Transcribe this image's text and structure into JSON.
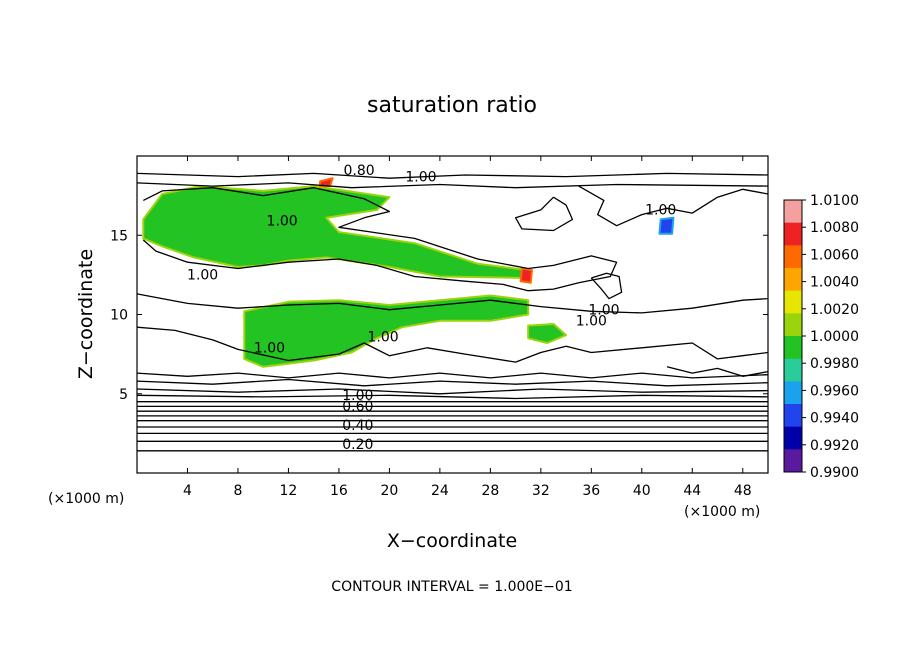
{
  "chart_data": {
    "type": "heatmap",
    "title": "saturation ratio",
    "xlabel": "X−coordinate",
    "ylabel": "Z−coordinate",
    "x_unit_left": "(×1000 m)",
    "x_unit_right": "(×1000 m)",
    "xlim": [
      0,
      50
    ],
    "ylim": [
      0,
      20
    ],
    "x_ticks": [
      "4",
      "8",
      "12",
      "16",
      "20",
      "24",
      "28",
      "32",
      "36",
      "40",
      "44",
      "48"
    ],
    "y_ticks": [
      "5",
      "10",
      "15"
    ],
    "footer": "CONTOUR INTERVAL = 1.000E−01",
    "colorbar": {
      "labels": [
        "1.0100",
        "1.0080",
        "1.0060",
        "1.0040",
        "1.0020",
        "1.0000",
        "0.9980",
        "0.9960",
        "0.9940",
        "0.9920",
        "0.9900"
      ],
      "colors": [
        "#f4a0a0",
        "#ee2222",
        "#ff6a00",
        "#ffa500",
        "#e6e600",
        "#9ad40a",
        "#22c322",
        "#2acc9a",
        "#1aa2ee",
        "#2244ee",
        "#0000aa",
        "#5a1aa0"
      ]
    },
    "contour_labels": [
      {
        "text": "0.80",
        "x": 17.6,
        "y": 18.8
      },
      {
        "text": "1.00",
        "x": 22.5,
        "y": 18.4
      },
      {
        "text": "1.00",
        "x": 41.5,
        "y": 16.3
      },
      {
        "text": "1.00",
        "x": 11.5,
        "y": 15.6
      },
      {
        "text": "1.00",
        "x": 5.2,
        "y": 12.2
      },
      {
        "text": "1.00",
        "x": 37.0,
        "y": 10.0
      },
      {
        "text": "1.00",
        "x": 36.0,
        "y": 9.3
      },
      {
        "text": "1.00",
        "x": 19.5,
        "y": 8.3
      },
      {
        "text": "1.00",
        "x": 10.5,
        "y": 7.6
      },
      {
        "text": "1.00",
        "x": 17.5,
        "y": 4.6
      },
      {
        "text": "0.60",
        "x": 17.5,
        "y": 3.9
      },
      {
        "text": "0.40",
        "x": 17.5,
        "y": 2.7
      },
      {
        "text": "0.20",
        "x": 17.5,
        "y": 1.5
      }
    ],
    "regions": [
      {
        "level": "green",
        "pts": [
          [
            2,
            17.6
          ],
          [
            5,
            18.1
          ],
          [
            10,
            17.8
          ],
          [
            14,
            18.1
          ],
          [
            20,
            17.4
          ],
          [
            19,
            16.6
          ],
          [
            15,
            16.1
          ],
          [
            16,
            15.2
          ],
          [
            22,
            14.5
          ],
          [
            27,
            13.2
          ],
          [
            31,
            12.8
          ],
          [
            31,
            12.3
          ],
          [
            24,
            12.4
          ],
          [
            20,
            13.0
          ],
          [
            15,
            13.6
          ],
          [
            12,
            13.4
          ],
          [
            10,
            13.1
          ],
          [
            8,
            13.0
          ],
          [
            4.5,
            13.6
          ],
          [
            2,
            14.3
          ],
          [
            0.5,
            14.8
          ],
          [
            0.5,
            16.0
          ]
        ]
      },
      {
        "level": "green",
        "pts": [
          [
            8.5,
            10.2
          ],
          [
            12,
            10.8
          ],
          [
            16,
            10.9
          ],
          [
            20,
            10.6
          ],
          [
            24,
            10.9
          ],
          [
            28,
            11.2
          ],
          [
            31,
            10.9
          ],
          [
            31,
            10.0
          ],
          [
            28,
            9.6
          ],
          [
            24,
            9.6
          ],
          [
            21,
            9.2
          ],
          [
            19,
            8.5
          ],
          [
            17,
            7.6
          ],
          [
            14,
            7.1
          ],
          [
            10,
            6.7
          ],
          [
            8.5,
            7.2
          ],
          [
            8.5,
            8.6
          ]
        ]
      },
      {
        "level": "green",
        "pts": [
          [
            31,
            9.3
          ],
          [
            33,
            9.4
          ],
          [
            34,
            8.7
          ],
          [
            32.5,
            8.2
          ],
          [
            31,
            8.5
          ]
        ]
      },
      {
        "level": "red",
        "pts": [
          [
            14.5,
            18.4
          ],
          [
            15.5,
            18.6
          ],
          [
            15.3,
            18.1
          ],
          [
            14.5,
            18.1
          ]
        ]
      },
      {
        "level": "red",
        "pts": [
          [
            30.5,
            12.9
          ],
          [
            31.3,
            12.8
          ],
          [
            31.2,
            12.0
          ],
          [
            30.4,
            12.1
          ]
        ]
      },
      {
        "level": "blue",
        "pts": [
          [
            41.5,
            16.0
          ],
          [
            42.5,
            16.1
          ],
          [
            42.4,
            15.1
          ],
          [
            41.4,
            15.1
          ]
        ]
      }
    ],
    "contours": [
      [
        [
          0,
          18.9
        ],
        [
          8,
          18.7
        ],
        [
          14,
          18.9
        ],
        [
          20,
          18.6
        ],
        [
          26,
          18.8
        ],
        [
          34,
          18.7
        ],
        [
          42,
          18.9
        ],
        [
          50,
          18.8
        ]
      ],
      [
        [
          0,
          18.3
        ],
        [
          6,
          18.1
        ],
        [
          12,
          18.3
        ],
        [
          17,
          18.0
        ],
        [
          24,
          18.2
        ],
        [
          30,
          18.0
        ],
        [
          38,
          18.2
        ],
        [
          50,
          18.1
        ]
      ],
      [
        [
          0.5,
          17.2
        ],
        [
          2,
          17.8
        ],
        [
          6,
          18.0
        ],
        [
          10,
          17.5
        ],
        [
          14,
          18.0
        ],
        [
          18,
          17.3
        ],
        [
          20,
          16.5
        ],
        [
          18,
          16.1
        ],
        [
          16,
          15.5
        ],
        [
          22,
          14.8
        ],
        [
          27,
          13.5
        ],
        [
          31,
          12.9
        ],
        [
          33,
          13.1
        ],
        [
          36,
          13.7
        ],
        [
          38,
          13.3
        ],
        [
          37.5,
          12.4
        ],
        [
          35,
          12.0
        ],
        [
          33,
          11.6
        ],
        [
          31,
          11.5
        ],
        [
          29,
          11.9
        ],
        [
          26,
          12.1
        ],
        [
          22,
          12.4
        ],
        [
          19,
          13.1
        ],
        [
          16,
          13.5
        ],
        [
          12,
          13.3
        ],
        [
          8,
          12.9
        ],
        [
          4,
          13.3
        ],
        [
          1.5,
          14.0
        ],
        [
          0.5,
          14.7
        ]
      ],
      [
        [
          0,
          11.3
        ],
        [
          2,
          11.0
        ],
        [
          4,
          10.7
        ],
        [
          8,
          10.4
        ],
        [
          12,
          10.6
        ],
        [
          16,
          10.7
        ],
        [
          20,
          10.3
        ],
        [
          24,
          10.6
        ],
        [
          28,
          10.9
        ],
        [
          32,
          10.5
        ],
        [
          36,
          10.2
        ],
        [
          40,
          10.1
        ],
        [
          44,
          10.4
        ],
        [
          48,
          10.9
        ],
        [
          50,
          11.0
        ]
      ],
      [
        [
          0,
          9.2
        ],
        [
          3,
          9.0
        ],
        [
          6,
          8.4
        ],
        [
          8,
          7.8
        ],
        [
          12,
          7.1
        ],
        [
          16,
          7.5
        ],
        [
          18,
          8.2
        ],
        [
          20,
          7.4
        ],
        [
          23,
          7.9
        ],
        [
          26,
          7.5
        ],
        [
          30,
          7.0
        ],
        [
          32,
          7.6
        ],
        [
          34,
          8.0
        ],
        [
          36,
          7.6
        ],
        [
          40,
          7.9
        ],
        [
          44,
          8.2
        ],
        [
          46,
          7.2
        ],
        [
          48,
          7.4
        ],
        [
          50,
          7.6
        ]
      ],
      [
        [
          35,
          18.1
        ],
        [
          37,
          17.2
        ],
        [
          36.5,
          16.3
        ],
        [
          38,
          15.6
        ],
        [
          40,
          16.3
        ],
        [
          42,
          16.7
        ],
        [
          44,
          16.4
        ],
        [
          46,
          17.4
        ],
        [
          48,
          17.9
        ],
        [
          50,
          17.6
        ]
      ],
      [
        [
          33,
          17.4
        ],
        [
          32,
          16.6
        ],
        [
          30,
          16.1
        ],
        [
          30.5,
          15.4
        ],
        [
          33,
          15.3
        ],
        [
          34.5,
          16.0
        ],
        [
          34,
          16.9
        ],
        [
          33,
          17.4
        ]
      ],
      [
        [
          36,
          12.3
        ],
        [
          36.8,
          11.6
        ],
        [
          37.4,
          11.0
        ],
        [
          38.4,
          11.4
        ],
        [
          38.2,
          12.4
        ],
        [
          37.2,
          12.6
        ],
        [
          36,
          12.3
        ]
      ],
      [
        [
          42,
          6.7
        ],
        [
          44,
          6.3
        ],
        [
          46,
          6.6
        ],
        [
          48,
          6.1
        ],
        [
          50,
          6.4
        ]
      ],
      [
        [
          0,
          6.3
        ],
        [
          4,
          6.1
        ],
        [
          8,
          6.3
        ],
        [
          12,
          6.0
        ],
        [
          16,
          6.3
        ],
        [
          20,
          6.0
        ],
        [
          24,
          6.3
        ],
        [
          28,
          6.0
        ],
        [
          32,
          6.3
        ],
        [
          36,
          6.0
        ],
        [
          40,
          6.3
        ],
        [
          44,
          6.0
        ],
        [
          50,
          6.2
        ]
      ],
      [
        [
          0,
          5.8
        ],
        [
          6,
          5.6
        ],
        [
          12,
          5.9
        ],
        [
          18,
          5.5
        ],
        [
          24,
          5.8
        ],
        [
          30,
          5.6
        ],
        [
          36,
          5.8
        ],
        [
          42,
          5.5
        ],
        [
          50,
          5.7
        ]
      ],
      [
        [
          0,
          5.3
        ],
        [
          8,
          5.1
        ],
        [
          16,
          5.3
        ],
        [
          24,
          5.0
        ],
        [
          32,
          5.3
        ],
        [
          40,
          5.1
        ],
        [
          50,
          5.2
        ]
      ],
      [
        [
          0,
          4.9
        ],
        [
          10,
          4.8
        ],
        [
          20,
          4.9
        ],
        [
          30,
          4.7
        ],
        [
          40,
          4.9
        ],
        [
          50,
          4.8
        ]
      ],
      [
        [
          0,
          4.5
        ],
        [
          50,
          4.5
        ]
      ],
      [
        [
          0,
          4.2
        ],
        [
          50,
          4.2
        ]
      ],
      [
        [
          0,
          3.9
        ],
        [
          50,
          3.9
        ]
      ],
      [
        [
          0,
          3.6
        ],
        [
          50,
          3.6
        ]
      ],
      [
        [
          0,
          3.3
        ],
        [
          50,
          3.3
        ]
      ],
      [
        [
          0,
          2.9
        ],
        [
          50,
          2.9
        ]
      ],
      [
        [
          0,
          2.5
        ],
        [
          50,
          2.5
        ]
      ],
      [
        [
          0,
          2.0
        ],
        [
          50,
          2.0
        ]
      ],
      [
        [
          0,
          1.4
        ],
        [
          50,
          1.4
        ]
      ]
    ]
  }
}
